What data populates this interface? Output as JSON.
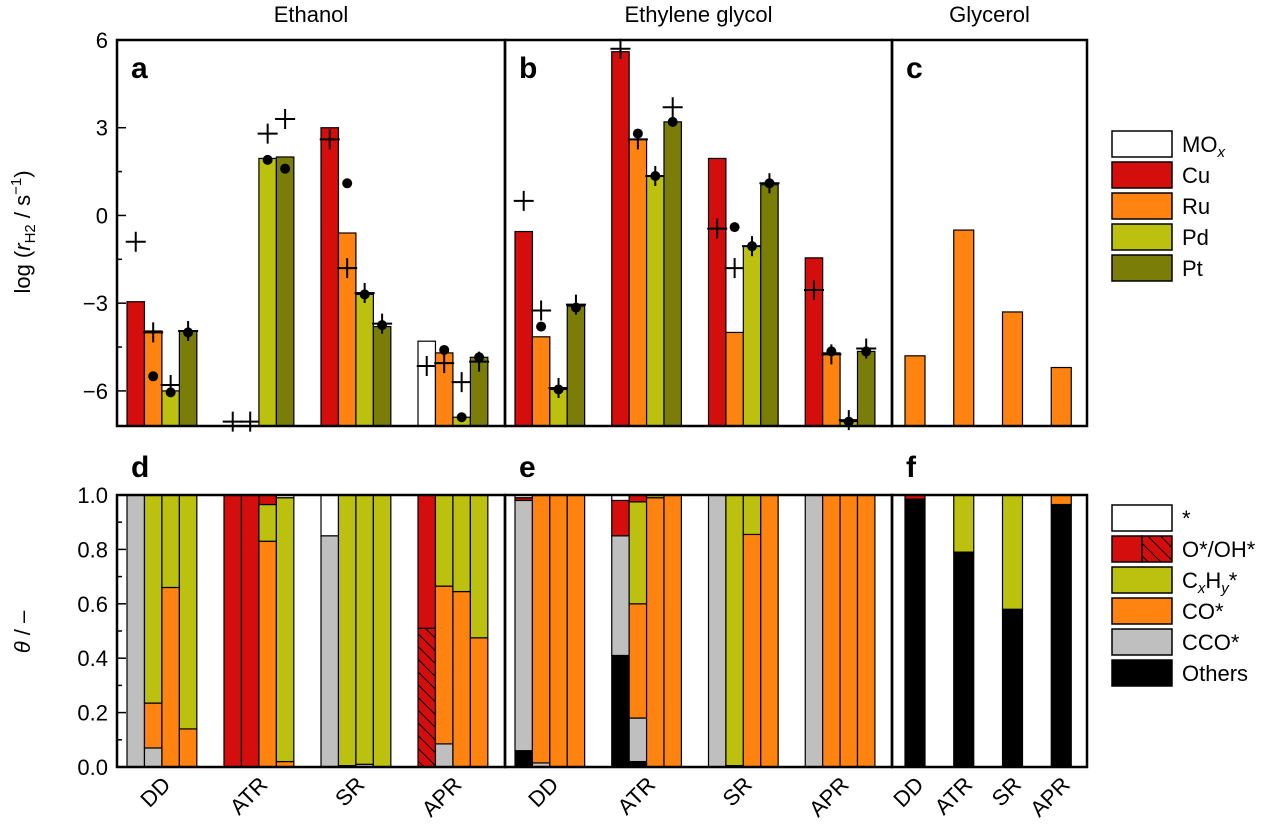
{
  "colors": {
    "MOx": "#ffffff",
    "Cu": "#d40d0d",
    "Ru": "#ff8310",
    "Pd": "#bcc10f",
    "Pt": "#7a7d08",
    "empty": "#ffffff",
    "O": "#d40d0d",
    "CxHy": "#bcc10f",
    "CO": "#ff8310",
    "CCO": "#bfbfbf",
    "Others": "#000000"
  },
  "chart_data": [
    {
      "type": "bar",
      "id": "top",
      "ylabel": "log (rH2 / s⁻¹)",
      "ylabel_parts": {
        "pre": "log (",
        "r": "r",
        "sub": "H2",
        "mid": " / s",
        "sup": "−1",
        "post": ")"
      },
      "ylim": [
        -7.2,
        6
      ],
      "yticks": [
        6,
        3,
        0,
        -3,
        -6
      ],
      "ytick_labels": [
        "6",
        "3",
        "0",
        "−3",
        "−6"
      ],
      "legend": {
        "position": "right",
        "entries": [
          {
            "key": "MOx",
            "label": "MO",
            "sub": "x"
          },
          {
            "key": "Cu",
            "label": "Cu"
          },
          {
            "key": "Ru",
            "label": "Ru"
          },
          {
            "key": "Pd",
            "label": "Pd"
          },
          {
            "key": "Pt",
            "label": "Pt"
          }
        ]
      },
      "panels": [
        {
          "letter": "a",
          "title": "Ethanol",
          "groups": [
            {
              "conditions": "DD",
              "bars": [
                {
                  "m": "Cu",
                  "v": -2.95,
                  "plus": -0.9
                },
                {
                  "m": "Ru",
                  "v": -3.95,
                  "dot": -5.5,
                  "plus": -4.0
                },
                {
                  "m": "Pd",
                  "v": -6.0,
                  "dot": -6.05,
                  "plus": -5.8
                },
                {
                  "m": "Pt",
                  "v": -3.95,
                  "dot": -4.0,
                  "plus": -3.95
                }
              ]
            },
            {
              "conditions": "ATR",
              "bars": [
                {
                  "m": "Cu",
                  "plus": -7.05
                },
                {
                  "m": "Ru",
                  "plus": -7.05
                },
                {
                  "m": "Pd",
                  "v": 1.95,
                  "dot": 1.9,
                  "plus": 2.8
                },
                {
                  "m": "Pt",
                  "v": 2.0,
                  "dot": 1.6,
                  "plus": 3.3
                }
              ]
            },
            {
              "conditions": "SR",
              "bars": [
                {
                  "m": "Cu",
                  "v": 3.0,
                  "plus": 2.6
                },
                {
                  "m": "Ru",
                  "v": -0.6,
                  "dot": 1.1,
                  "plus": -1.8
                },
                {
                  "m": "Pd",
                  "v": -2.7,
                  "dot": -2.7,
                  "plus": -2.65
                },
                {
                  "m": "Pt",
                  "v": -3.8,
                  "dot": -3.75,
                  "plus": -3.7
                }
              ]
            },
            {
              "conditions": "APR",
              "bars": [
                {
                  "m": "MOx",
                  "v": -4.3,
                  "plus": -5.15
                },
                {
                  "m": "Ru",
                  "v": -4.7,
                  "dot": -4.6,
                  "plus": -5.05
                },
                {
                  "m": "Pd",
                  "v": -6.9,
                  "dot": -6.9,
                  "plus": -5.7
                },
                {
                  "m": "Pt",
                  "v": -4.85,
                  "dot": -4.85,
                  "plus": -5.0
                }
              ]
            }
          ]
        },
        {
          "letter": "b",
          "title": "Ethylene glycol",
          "groups": [
            {
              "conditions": "DD",
              "bars": [
                {
                  "m": "Cu",
                  "v": -0.55,
                  "plus": 0.5
                },
                {
                  "m": "Ru",
                  "v": -4.15,
                  "dot": -3.8,
                  "plus": -3.25
                },
                {
                  "m": "Pd",
                  "v": -5.95,
                  "dot": -5.95,
                  "plus": -5.9
                },
                {
                  "m": "Pt",
                  "v": -3.1,
                  "dot": -3.15,
                  "plus": -3.05
                }
              ]
            },
            {
              "conditions": "ATR",
              "bars": [
                {
                  "m": "Cu",
                  "v": 5.6,
                  "plus": 5.7
                },
                {
                  "m": "Ru",
                  "v": 2.6,
                  "dot": 2.8,
                  "plus": 2.6
                },
                {
                  "m": "Pd",
                  "v": 1.35,
                  "dot": 1.35,
                  "plus": 1.35
                },
                {
                  "m": "Pt",
                  "v": 3.2,
                  "dot": 3.2,
                  "plus": 3.7
                }
              ]
            },
            {
              "conditions": "SR",
              "bars": [
                {
                  "m": "Cu",
                  "v": 1.95,
                  "plus": -0.45
                },
                {
                  "m": "Ru",
                  "v": -4.0,
                  "dot": -0.4,
                  "plus": -1.8
                },
                {
                  "m": "Pd",
                  "v": -1.05,
                  "dot": -1.05,
                  "plus": -1.05
                },
                {
                  "m": "Pt",
                  "v": 1.05,
                  "dot": 1.1,
                  "plus": 1.1
                }
              ]
            },
            {
              "conditions": "APR",
              "bars": [
                {
                  "m": "Cu",
                  "v": -1.45,
                  "plus": -2.55
                },
                {
                  "m": "Ru",
                  "v": -4.7,
                  "dot": -4.65,
                  "plus": -4.75
                },
                {
                  "m": "Pd",
                  "v": -7.05,
                  "dot": -7.05,
                  "plus": -7.0
                },
                {
                  "m": "Pt",
                  "v": -4.65,
                  "dot": -4.65,
                  "plus": -4.55
                }
              ]
            }
          ]
        },
        {
          "letter": "c",
          "title": "Glycerol",
          "groups": [
            {
              "conditions": "DD",
              "bars": [
                {
                  "m": "Ru",
                  "v": -4.8
                }
              ]
            },
            {
              "conditions": "ATR",
              "bars": [
                {
                  "m": "Ru",
                  "v": -0.5
                }
              ]
            },
            {
              "conditions": "SR",
              "bars": [
                {
                  "m": "Ru",
                  "v": -3.3
                }
              ]
            },
            {
              "conditions": "APR",
              "bars": [
                {
                  "m": "Ru",
                  "v": -5.2
                }
              ]
            }
          ]
        }
      ]
    },
    {
      "type": "bar",
      "id": "bottom",
      "stacked": true,
      "ylabel": "θ / –",
      "ylim": [
        0,
        1
      ],
      "yticks": [
        0,
        0.2,
        0.4,
        0.6,
        0.8,
        1.0
      ],
      "ytick_labels": [
        "0.0",
        "0.2",
        "0.4",
        "0.6",
        "0.8",
        "1.0"
      ],
      "stack_order": [
        "Others",
        "CCO",
        "CO",
        "CxHy",
        "OH",
        "O",
        "empty"
      ],
      "legend": {
        "position": "right",
        "entries": [
          {
            "key": "empty",
            "label": "*"
          },
          {
            "key": "O",
            "label": "O*/OH*"
          },
          {
            "key": "CxHy",
            "label": "CxHy*"
          },
          {
            "key": "CO",
            "label": "CO*"
          },
          {
            "key": "CCO",
            "label": "CCO*"
          },
          {
            "key": "Others",
            "label": "Others"
          }
        ]
      },
      "panels": [
        {
          "letter": "d",
          "categories": [
            "DD",
            "ATR",
            "SR",
            "APR"
          ],
          "groups": [
            [
              {
                "CCO": 1.0
              },
              {
                "CCO": 0.07,
                "CO": 0.165,
                "CxHy": 0.765
              },
              {
                "CO": 0.66,
                "CxHy": 0.34
              },
              {
                "CO": 0.14,
                "CxHy": 0.86
              }
            ],
            [
              {
                "O": 1.0
              },
              {
                "O": 1.0
              },
              {
                "CO": 0.83,
                "CxHy": 0.135,
                "O": 0.035
              },
              {
                "CO": 0.02,
                "CxHy": 0.97,
                "empty": 0.01
              }
            ],
            [
              {
                "CCO": 0.85,
                "empty": 0.15
              },
              {
                "CCO": 0.005,
                "CxHy": 0.995
              },
              {
                "CCO": 0.01,
                "CxHy": 0.99
              },
              {
                "CxHy": 1.0
              }
            ],
            [
              {
                "OH": 0.51,
                "O": 0.49
              },
              {
                "CCO": 0.085,
                "CO": 0.58,
                "CxHy": 0.335
              },
              {
                "CO": 0.645,
                "CxHy": 0.355
              },
              {
                "CO": 0.475,
                "CxHy": 0.525
              }
            ]
          ]
        },
        {
          "letter": "e",
          "categories": [
            "DD",
            "ATR",
            "SR",
            "APR"
          ],
          "groups": [
            [
              {
                "Others": 0.06,
                "CCO": 0.92,
                "O": 0.01,
                "empty": 0.01
              },
              {
                "CCO": 0.015,
                "CO": 0.985
              },
              {
                "CO": 1.0
              },
              {
                "CO": 1.0
              }
            ],
            [
              {
                "Others": 0.41,
                "CCO": 0.44,
                "O": 0.13,
                "empty": 0.02
              },
              {
                "Others": 0.02,
                "CCO": 0.16,
                "CO": 0.42,
                "CxHy": 0.375,
                "O": 0.025
              },
              {
                "CO": 0.99,
                "CxHy": 0.01
              },
              {
                "CO": 1.0
              }
            ],
            [
              {
                "CCO": 1.0
              },
              {
                "CO": 0.005,
                "CxHy": 0.995
              },
              {
                "CO": 0.855,
                "CxHy": 0.145
              },
              {
                "CO": 1.0
              }
            ],
            [
              {
                "CCO": 1.0
              },
              {
                "CO": 1.0
              },
              {
                "CO": 1.0
              },
              {
                "CO": 1.0
              }
            ]
          ]
        },
        {
          "letter": "f",
          "categories": [
            "DD",
            "ATR",
            "SR",
            "APR"
          ],
          "groups": [
            [
              {
                "Others": 0.985,
                "O": 0.015
              }
            ],
            [
              {
                "Others": 0.79,
                "CxHy": 0.21
              }
            ],
            [
              {
                "Others": 0.58,
                "CxHy": 0.42
              }
            ],
            [
              {
                "Others": 0.965,
                "CO": 0.035
              }
            ]
          ]
        }
      ]
    }
  ]
}
